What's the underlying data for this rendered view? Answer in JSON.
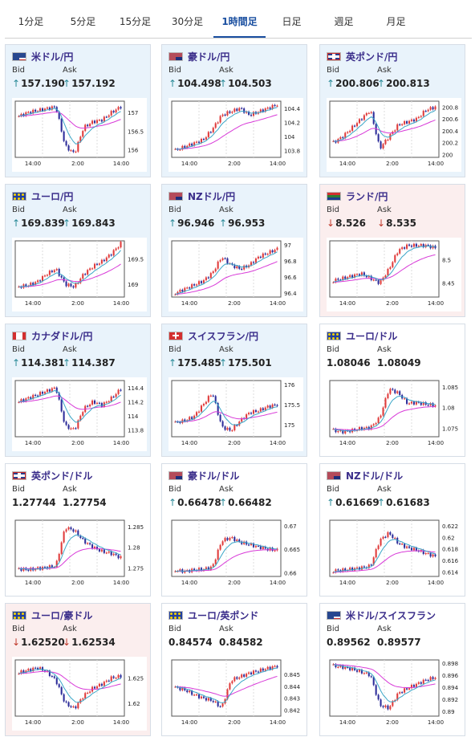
{
  "tabs": [
    {
      "label": "1分足",
      "active": false
    },
    {
      "label": "5分足",
      "active": false
    },
    {
      "label": "15分足",
      "active": false
    },
    {
      "label": "30分足",
      "active": false
    },
    {
      "label": "1時間足",
      "active": true
    },
    {
      "label": "日足",
      "active": false
    },
    {
      "label": "週足",
      "active": false
    },
    {
      "label": "月足",
      "active": false
    }
  ],
  "bid_label": "Bid",
  "ask_label": "Ask",
  "x_ticks": [
    "14:00",
    "2:00",
    "14:00"
  ],
  "colors": {
    "up_card": "#e9f3fb",
    "down_card": "#fbeeee",
    "candle_up": "#e03b3b",
    "candle_down": "#2d2d9a",
    "ma_short": "#3aa6c7",
    "ma_long": "#d83ad8",
    "pair_text": "#3a2d8a"
  },
  "cards": [
    {
      "pair": "米ドル/円",
      "flags": [
        "flag-us",
        "flag-jp"
      ],
      "bid": "157.190",
      "ask": "157.192",
      "bid_dir": "up",
      "ask_dir": "up",
      "tone": "up",
      "chart_data": {
        "type": "candlestick",
        "y_ticks": [
          "157",
          "156.5",
          "156"
        ],
        "ylim": [
          155.8,
          157.3
        ],
        "trend": [
          156.9,
          157.0,
          157.05,
          157.1,
          157.15,
          156.1,
          155.9,
          156.6,
          156.75,
          156.8,
          157.0,
          157.15
        ]
      }
    },
    {
      "pair": "豪ドル/円",
      "flags": [
        "flag-au",
        "flag-jp"
      ],
      "bid": "104.498",
      "ask": "104.503",
      "bid_dir": "up",
      "ask_dir": "up",
      "tone": "up",
      "chart_data": {
        "type": "candlestick",
        "y_ticks": [
          "104.4",
          "104.2",
          "104",
          "103.8"
        ],
        "ylim": [
          103.7,
          104.5
        ],
        "trend": [
          103.8,
          103.85,
          103.9,
          103.95,
          104.1,
          104.3,
          104.35,
          104.4,
          104.3,
          104.35,
          104.4,
          104.45
        ]
      }
    },
    {
      "pair": "英ポンド/円",
      "flags": [
        "flag-gb",
        "flag-jp"
      ],
      "bid": "200.806",
      "ask": "200.813",
      "bid_dir": "up",
      "ask_dir": "up",
      "tone": "up",
      "chart_data": {
        "type": "candlestick",
        "y_ticks": [
          "200.8",
          "200.6",
          "200.4",
          "200.2",
          "200"
        ],
        "ylim": [
          199.95,
          200.9
        ],
        "trend": [
          200.2,
          200.3,
          200.45,
          200.6,
          200.75,
          200.1,
          200.3,
          200.5,
          200.55,
          200.6,
          200.75,
          200.8
        ]
      }
    },
    {
      "pair": "ユーロ/円",
      "flags": [
        "flag-eu",
        "flag-jp"
      ],
      "bid": "169.839",
      "ask": "169.843",
      "bid_dir": "up",
      "ask_dir": "up",
      "tone": "up",
      "chart_data": {
        "type": "candlestick",
        "y_ticks": [
          "169.5",
          "169"
        ],
        "ylim": [
          168.75,
          169.85
        ],
        "trend": [
          168.95,
          168.98,
          169.05,
          169.2,
          169.3,
          169.0,
          168.95,
          169.2,
          169.35,
          169.45,
          169.6,
          169.8
        ]
      }
    },
    {
      "pair": "NZドル/円",
      "flags": [
        "flag-nz",
        "flag-jp"
      ],
      "bid": "96.946",
      "ask": "96.953",
      "bid_dir": "up",
      "ask_dir": "up",
      "tone": "up",
      "chart_data": {
        "type": "candlestick",
        "y_ticks": [
          "97",
          "96.8",
          "96.6",
          "96.4"
        ],
        "ylim": [
          96.35,
          97.05
        ],
        "trend": [
          96.4,
          96.45,
          96.5,
          96.55,
          96.65,
          96.85,
          96.75,
          96.7,
          96.75,
          96.85,
          96.9,
          96.95
        ]
      }
    },
    {
      "pair": "ランド/円",
      "flags": [
        "flag-za",
        "flag-jp"
      ],
      "bid": "8.526",
      "ask": "8.535",
      "bid_dir": "down",
      "ask_dir": "down",
      "tone": "down",
      "chart_data": {
        "type": "candlestick",
        "y_ticks": [
          "8.5",
          "8.45"
        ],
        "ylim": [
          8.42,
          8.54
        ],
        "trend": [
          8.455,
          8.46,
          8.465,
          8.47,
          8.46,
          8.45,
          8.48,
          8.52,
          8.53,
          8.53,
          8.53,
          8.525
        ]
      }
    },
    {
      "pair": "カナダドル/円",
      "flags": [
        "flag-ca",
        "flag-jp"
      ],
      "bid": "114.381",
      "ask": "114.387",
      "bid_dir": "up",
      "ask_dir": "up",
      "tone": "up",
      "chart_data": {
        "type": "candlestick",
        "y_ticks": [
          "114.4",
          "114.2",
          "114",
          "113.8"
        ],
        "ylim": [
          113.7,
          114.5
        ],
        "trend": [
          114.2,
          114.25,
          114.3,
          114.35,
          114.4,
          113.85,
          113.8,
          114.1,
          114.2,
          114.15,
          114.25,
          114.38
        ]
      }
    },
    {
      "pair": "スイスフラン/円",
      "flags": [
        "flag-ch",
        "flag-jp"
      ],
      "bid": "175.485",
      "ask": "175.501",
      "bid_dir": "up",
      "ask_dir": "up",
      "tone": "up",
      "chart_data": {
        "type": "candlestick",
        "y_ticks": [
          "176",
          "175.5",
          "175"
        ],
        "ylim": [
          174.7,
          176.1
        ],
        "trend": [
          175.05,
          175.1,
          175.2,
          175.5,
          175.8,
          174.95,
          174.85,
          175.1,
          175.3,
          175.35,
          175.45,
          175.5
        ]
      }
    },
    {
      "pair": "ユーロ/ドル",
      "flags": [
        "flag-eu",
        "flag-us"
      ],
      "bid": "1.08046",
      "ask": "1.08049",
      "bid_dir": "none",
      "ask_dir": "none",
      "tone": "flat",
      "chart_data": {
        "type": "candlestick",
        "y_ticks": [
          "1.085",
          "1.08",
          "1.075"
        ],
        "ylim": [
          1.073,
          1.0865
        ],
        "trend": [
          1.0745,
          1.0742,
          1.0745,
          1.075,
          1.0752,
          1.0775,
          1.0845,
          1.0835,
          1.081,
          1.0812,
          1.0808,
          1.0805
        ]
      }
    },
    {
      "pair": "英ポンド/ドル",
      "flags": [
        "flag-gb",
        "flag-us"
      ],
      "bid": "1.27744",
      "ask": "1.27754",
      "bid_dir": "none",
      "ask_dir": "none",
      "tone": "flat",
      "chart_data": {
        "type": "candlestick",
        "y_ticks": [
          "1.285",
          "1.28",
          "1.275"
        ],
        "ylim": [
          1.273,
          1.2865
        ],
        "trend": [
          1.2748,
          1.2746,
          1.2749,
          1.2752,
          1.2755,
          1.2848,
          1.284,
          1.2815,
          1.28,
          1.279,
          1.2785,
          1.2775
        ]
      }
    },
    {
      "pair": "豪ドル/ドル",
      "flags": [
        "flag-au",
        "flag-us"
      ],
      "bid": "0.66478",
      "ask": "0.66482",
      "bid_dir": "up",
      "ask_dir": "up",
      "tone": "flat",
      "chart_data": {
        "type": "candlestick",
        "y_ticks": [
          "0.67",
          "0.665",
          "0.66"
        ],
        "ylim": [
          0.6592,
          0.6712
        ],
        "trend": [
          0.6605,
          0.6603,
          0.6606,
          0.6607,
          0.6612,
          0.6668,
          0.6675,
          0.6665,
          0.666,
          0.6655,
          0.665,
          0.6648
        ]
      }
    },
    {
      "pair": "NZドル/ドル",
      "flags": [
        "flag-nz",
        "flag-us"
      ],
      "bid": "0.61669",
      "ask": "0.61683",
      "bid_dir": "up",
      "ask_dir": "up",
      "tone": "flat",
      "chart_data": {
        "type": "candlestick",
        "y_ticks": [
          "0.622",
          "0.62",
          "0.618",
          "0.616",
          "0.614"
        ],
        "ylim": [
          0.6132,
          0.623
        ],
        "trend": [
          0.6142,
          0.6143,
          0.6145,
          0.6147,
          0.615,
          0.6195,
          0.6208,
          0.619,
          0.6182,
          0.6178,
          0.6172,
          0.6167
        ]
      }
    },
    {
      "pair": "ユーロ/豪ドル",
      "flags": [
        "flag-eu",
        "flag-au"
      ],
      "bid": "1.62520",
      "ask": "1.62534",
      "bid_dir": "down",
      "ask_dir": "down",
      "tone": "down",
      "chart_data": {
        "type": "candlestick",
        "y_ticks": [
          "1.625",
          "1.62"
        ],
        "ylim": [
          1.6175,
          1.6285
        ],
        "trend": [
          1.626,
          1.6265,
          1.627,
          1.6262,
          1.6245,
          1.62,
          1.619,
          1.6215,
          1.623,
          1.6238,
          1.625,
          1.6253
        ]
      }
    },
    {
      "pair": "ユーロ/英ポンド",
      "flags": [
        "flag-eu",
        "flag-gb"
      ],
      "bid": "0.84574",
      "ask": "0.84582",
      "bid_dir": "none",
      "ask_dir": "none",
      "tone": "flat",
      "chart_data": {
        "type": "candlestick",
        "y_ticks": [
          "0.845",
          "0.844",
          "0.843",
          "0.842"
        ],
        "ylim": [
          0.8415,
          0.8462
        ],
        "trend": [
          0.8439,
          0.8437,
          0.8433,
          0.843,
          0.8428,
          0.8422,
          0.8445,
          0.8448,
          0.8451,
          0.8453,
          0.8455,
          0.8457
        ]
      }
    },
    {
      "pair": "米ドル/スイスフラン",
      "flags": [
        "flag-us",
        "flag-ch"
      ],
      "bid": "0.89562",
      "ask": "0.89577",
      "bid_dir": "none",
      "ask_dir": "none",
      "tone": "flat",
      "chart_data": {
        "type": "candlestick",
        "y_ticks": [
          "0.898",
          "0.896",
          "0.894",
          "0.892",
          "0.89"
        ],
        "ylim": [
          0.8892,
          0.8985
        ],
        "trend": [
          0.8975,
          0.8973,
          0.897,
          0.8965,
          0.896,
          0.891,
          0.8905,
          0.893,
          0.8938,
          0.8945,
          0.8952,
          0.8956
        ]
      }
    }
  ]
}
